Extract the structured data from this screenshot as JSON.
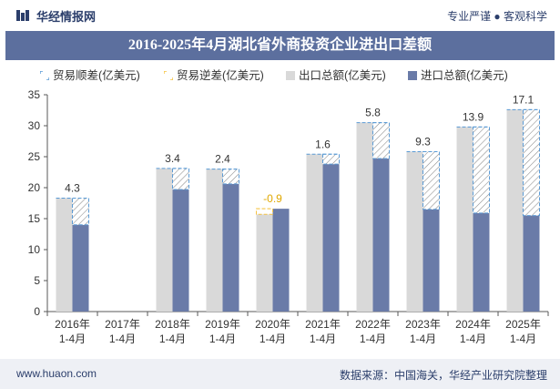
{
  "header": {
    "brand": "华经情报网",
    "tagline": "专业严谨 ● 客观科学"
  },
  "title": "2016-2025年4月湖北省外商投资企业进出口差额",
  "legend": [
    {
      "label": "贸易顺差(亿美元)",
      "key": "surplus"
    },
    {
      "label": "贸易逆差(亿美元)",
      "key": "deficit"
    },
    {
      "label": "出口总额(亿美元)",
      "key": "export"
    },
    {
      "label": "进口总额(亿美元)",
      "key": "import"
    }
  ],
  "colors": {
    "export": "#d9d9d9",
    "import": "#6a7ba8",
    "surplus_stroke": "#5b9bd5",
    "deficit_stroke": "#f5c342",
    "title_band": "#5c6f9e",
    "axis": "#595959",
    "text": "#333333",
    "deficit_label": "#e0a800"
  },
  "chart_data": {
    "type": "bar",
    "categories": [
      "2016年\n1-4月",
      "2017年\n1-4月",
      "2018年\n1-4月",
      "2019年\n1-4月",
      "2020年\n1-4月",
      "2021年\n1-4月",
      "2022年\n1-4月",
      "2023年\n1-4月",
      "2024年\n1-4月",
      "2025年\n1-4月"
    ],
    "series": [
      {
        "name": "出口总额(亿美元)",
        "key": "export",
        "values": [
          18.3,
          null,
          23.1,
          23.0,
          15.7,
          25.4,
          30.5,
          25.8,
          29.8,
          32.6
        ]
      },
      {
        "name": "进口总额(亿美元)",
        "key": "import",
        "values": [
          14.0,
          null,
          19.7,
          20.6,
          16.6,
          23.8,
          24.7,
          16.5,
          15.9,
          15.5
        ]
      },
      {
        "name": "贸易顺差(亿美元)",
        "key": "surplus",
        "values": [
          4.3,
          null,
          3.4,
          2.4,
          null,
          1.6,
          5.8,
          9.3,
          13.9,
          17.1
        ]
      },
      {
        "name": "贸易逆差(亿美元)",
        "key": "deficit",
        "values": [
          null,
          null,
          null,
          null,
          -0.9,
          null,
          null,
          null,
          null,
          null
        ]
      }
    ],
    "data_labels": [
      "4.3",
      "",
      "3.4",
      "2.4",
      "-0.9",
      "1.6",
      "5.8",
      "9.3",
      "13.9",
      "17.1"
    ],
    "ylim": [
      0,
      35
    ],
    "yticks": [
      0,
      5,
      10,
      15,
      20,
      25,
      30,
      35
    ],
    "grid": false,
    "legend_position": "top-left"
  },
  "footer": {
    "url": "www.huaon.com",
    "source": "数据来源：中国海关，华经产业研究院整理"
  }
}
